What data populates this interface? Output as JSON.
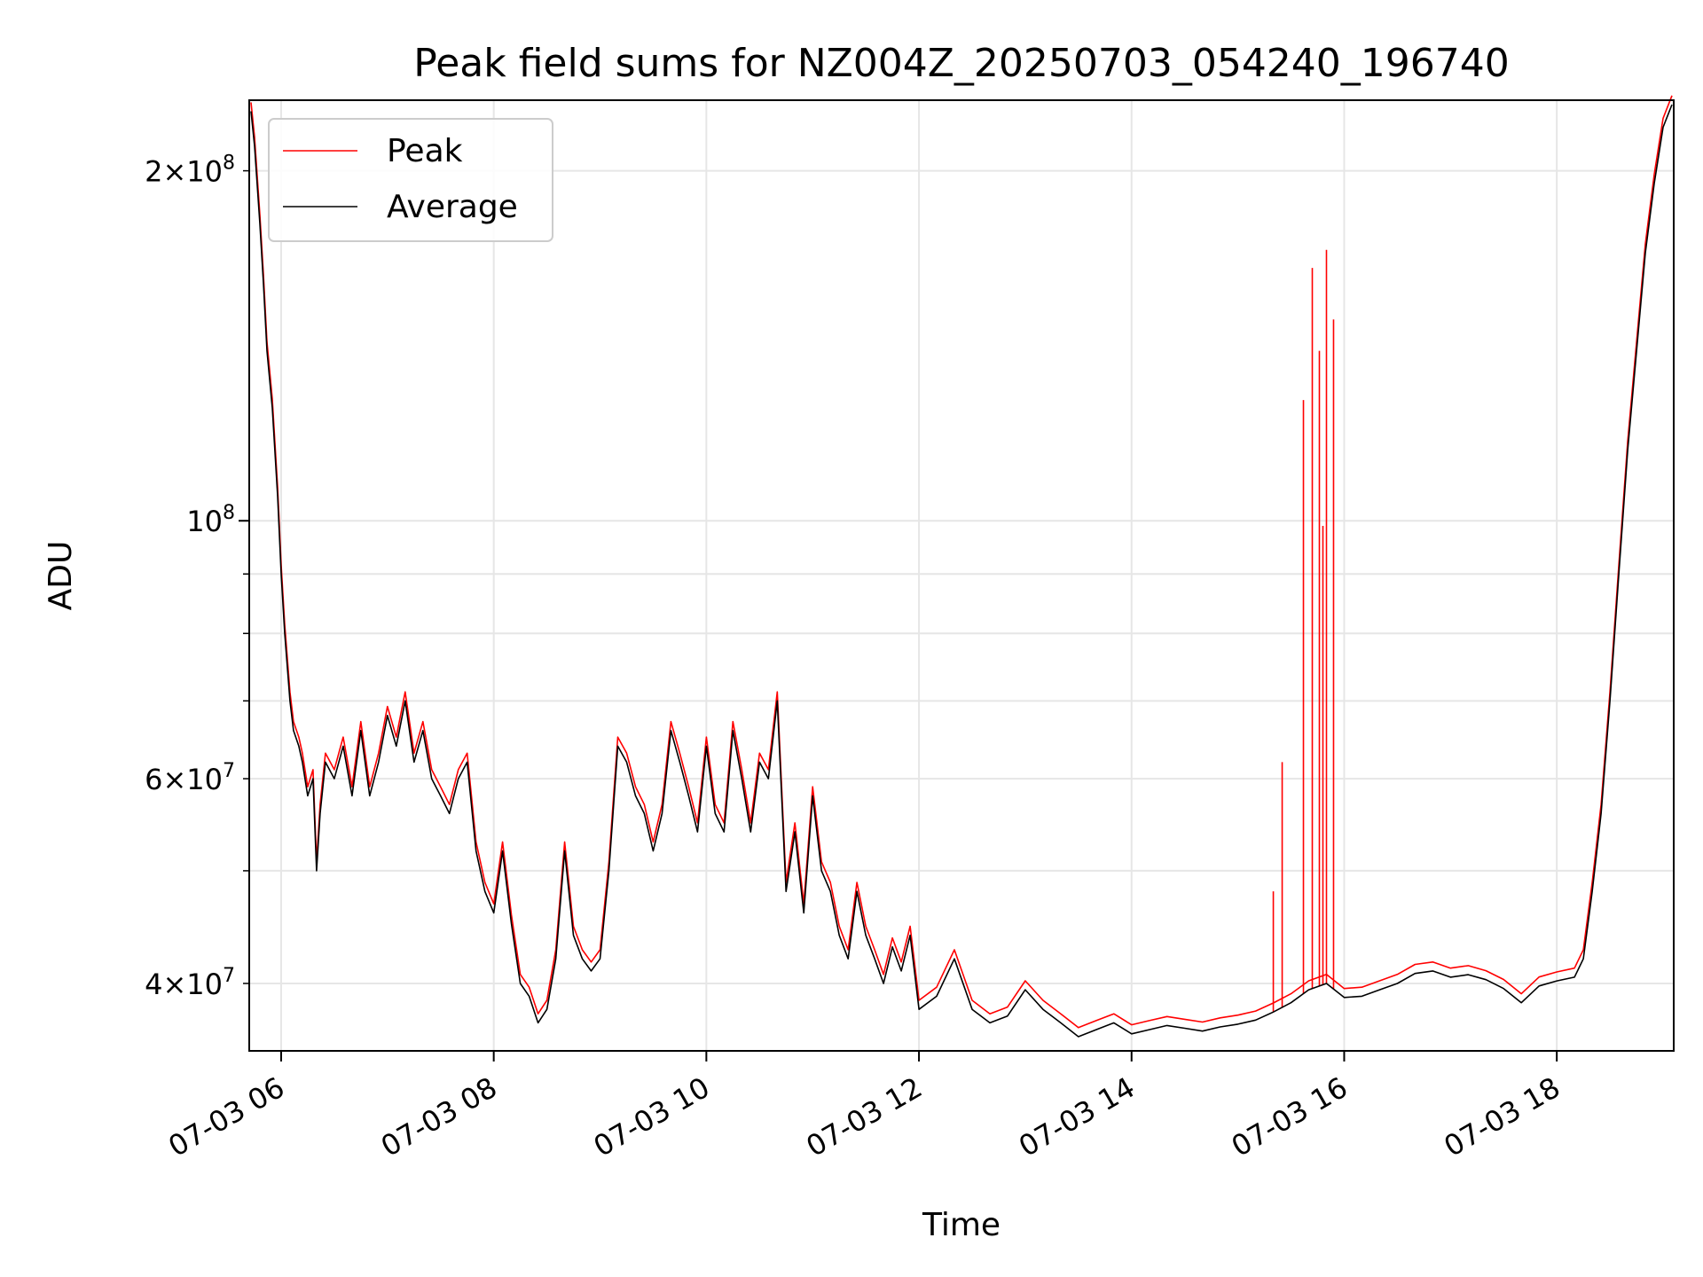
{
  "chart_data": {
    "type": "line",
    "title": "Peak field sums for NZ004Z_20250703_054240_196740",
    "xlabel": "Time",
    "ylabel": "ADU",
    "yscale": "log",
    "grid": true,
    "legend_position": "upper-left",
    "xlim": [
      "2025-07-03 05:42",
      "2025-07-03 19:06"
    ],
    "ylim": [
      35000000,
      230000000
    ],
    "x_ticks": [
      "07-03 06",
      "07-03 08",
      "07-03 10",
      "07-03 12",
      "07-03 14",
      "07-03 16",
      "07-03 18"
    ],
    "y_ticks_major": [
      {
        "value": 100000000,
        "mant": "",
        "exp": "8"
      }
    ],
    "y_ticks_minor_labeled": [
      {
        "value": 40000000,
        "mant": "4",
        "exp": "7"
      },
      {
        "value": 60000000,
        "mant": "6",
        "exp": "7"
      },
      {
        "value": 200000000,
        "mant": "2",
        "exp": "8"
      }
    ],
    "series": [
      {
        "name": "Average",
        "color": "#000000",
        "x": [
          "05:43",
          "05:45",
          "05:48",
          "05:50",
          "05:52",
          "05:55",
          "05:58",
          "06:00",
          "06:02",
          "06:05",
          "06:07",
          "06:10",
          "06:12",
          "06:15",
          "06:18",
          "06:20",
          "06:22",
          "06:25",
          "06:30",
          "06:35",
          "06:40",
          "06:45",
          "06:50",
          "06:55",
          "07:00",
          "07:05",
          "07:10",
          "07:15",
          "07:20",
          "07:25",
          "07:30",
          "07:35",
          "07:40",
          "07:45",
          "07:50",
          "07:55",
          "08:00",
          "08:05",
          "08:10",
          "08:15",
          "08:20",
          "08:25",
          "08:30",
          "08:35",
          "08:40",
          "08:45",
          "08:50",
          "08:55",
          "09:00",
          "09:05",
          "09:10",
          "09:15",
          "09:20",
          "09:25",
          "09:30",
          "09:35",
          "09:40",
          "09:45",
          "09:50",
          "09:55",
          "10:00",
          "10:05",
          "10:10",
          "10:15",
          "10:20",
          "10:25",
          "10:30",
          "10:35",
          "10:40",
          "10:45",
          "10:50",
          "10:55",
          "11:00",
          "11:05",
          "11:10",
          "11:15",
          "11:20",
          "11:25",
          "11:30",
          "11:35",
          "11:40",
          "11:45",
          "11:50",
          "11:55",
          "12:00",
          "12:10",
          "12:20",
          "12:30",
          "12:40",
          "12:50",
          "13:00",
          "13:10",
          "13:20",
          "13:30",
          "13:40",
          "13:50",
          "14:00",
          "14:10",
          "14:20",
          "14:30",
          "14:40",
          "14:50",
          "15:00",
          "15:10",
          "15:20",
          "15:30",
          "15:40",
          "15:50",
          "16:00",
          "16:10",
          "16:20",
          "16:30",
          "16:40",
          "16:50",
          "17:00",
          "17:10",
          "17:20",
          "17:30",
          "17:40",
          "17:50",
          "18:00",
          "18:10",
          "18:15",
          "18:20",
          "18:25",
          "18:30",
          "18:35",
          "18:40",
          "18:45",
          "18:50",
          "18:55",
          "19:00",
          "19:05"
        ],
        "values": [
          225000000,
          210000000,
          180000000,
          160000000,
          140000000,
          125000000,
          105000000,
          90000000,
          80000000,
          70000000,
          66000000,
          64000000,
          62000000,
          58000000,
          60000000,
          50000000,
          56000000,
          62000000,
          60000000,
          64000000,
          58000000,
          66000000,
          58000000,
          62000000,
          68000000,
          64000000,
          70000000,
          62000000,
          66000000,
          60000000,
          58000000,
          56000000,
          60000000,
          62000000,
          52000000,
          48000000,
          46000000,
          52000000,
          45000000,
          40000000,
          39000000,
          37000000,
          38000000,
          42000000,
          52000000,
          44000000,
          42000000,
          41000000,
          42000000,
          50000000,
          64000000,
          62000000,
          58000000,
          56000000,
          52000000,
          56000000,
          66000000,
          62000000,
          58000000,
          54000000,
          64000000,
          56000000,
          54000000,
          66000000,
          60000000,
          54000000,
          62000000,
          60000000,
          70000000,
          48000000,
          54000000,
          46000000,
          58000000,
          50000000,
          48000000,
          44000000,
          42000000,
          48000000,
          44000000,
          42000000,
          40000000,
          43000000,
          41000000,
          44000000,
          38000000,
          39000000,
          42000000,
          38000000,
          37000000,
          37500000,
          39500000,
          38000000,
          37000000,
          36000000,
          36500000,
          37000000,
          36200000,
          36500000,
          36800000,
          36600000,
          36400000,
          36700000,
          36900000,
          37200000,
          37800000,
          38500000,
          39500000,
          40000000,
          38900000,
          39000000,
          39500000,
          40000000,
          40800000,
          41000000,
          40500000,
          40700000,
          40300000,
          39600000,
          38500000,
          39800000,
          40200000,
          40500000,
          42000000,
          48000000,
          56000000,
          70000000,
          90000000,
          115000000,
          140000000,
          170000000,
          195000000,
          218000000,
          228000000
        ]
      },
      {
        "name": "Peak",
        "color": "#ff0000",
        "spikes": [
          {
            "x": "15:20",
            "value": 48000000
          },
          {
            "x": "15:25",
            "value": 62000000
          },
          {
            "x": "15:37",
            "value": 127000000
          },
          {
            "x": "15:42",
            "value": 165000000
          },
          {
            "x": "15:46",
            "value": 140000000
          },
          {
            "x": "15:48",
            "value": 99000000
          },
          {
            "x": "15:50",
            "value": 171000000
          },
          {
            "x": "15:54",
            "value": 149000000
          }
        ]
      }
    ]
  }
}
